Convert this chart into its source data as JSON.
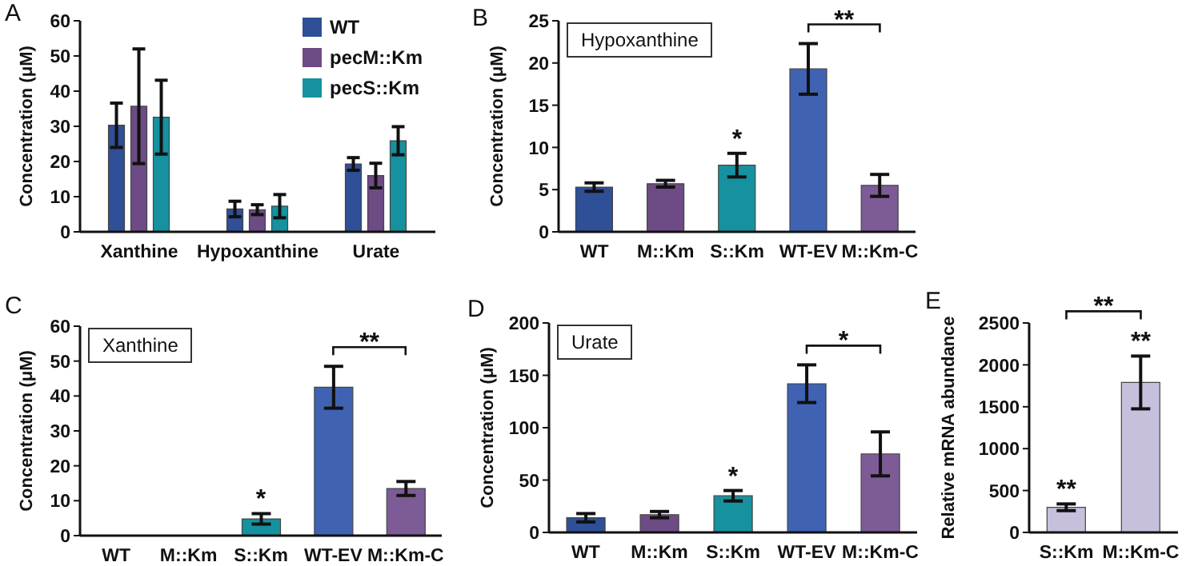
{
  "chart_data": [
    {
      "type": "bar",
      "title": "A",
      "ylabel": "Concentration (μM)",
      "categories": [
        "Xanthine",
        "Hypoxanthine",
        "Urate"
      ],
      "series": [
        {
          "name": "WT",
          "color": "#2f4f96",
          "values": [
            30.3,
            6.5,
            19.3
          ],
          "errors": [
            6.3,
            2.2,
            1.8
          ]
        },
        {
          "name": "pecM::Km",
          "color": "#6d4b85",
          "values": [
            35.7,
            6.3,
            16
          ],
          "errors": [
            16.3,
            1.4,
            3.5
          ]
        },
        {
          "name": "pecS::Km",
          "color": "#16919f",
          "values": [
            32.6,
            7.3,
            25.9
          ],
          "errors": [
            10.5,
            3.3,
            4
          ]
        }
      ],
      "ylim": [
        0,
        60
      ],
      "yticks": [
        0,
        10,
        20,
        30,
        40,
        50,
        60
      ],
      "legend": "top right"
    },
    {
      "type": "bar",
      "title": "B",
      "subtitle": "Hypoxanthine",
      "ylabel": "Concentration (μM)",
      "categories": [
        "WT",
        "M::Km",
        "S::Km",
        "WT-EV",
        "M::Km-C"
      ],
      "values": [
        5.3,
        5.7,
        7.9,
        19.3,
        5.5
      ],
      "errors": [
        0.5,
        0.4,
        1.4,
        3,
        1.3
      ],
      "colors": [
        "#2f4f96",
        "#6d4b85",
        "#16919f",
        "#3f62b2",
        "#7d5b96"
      ],
      "ylim": [
        0,
        25
      ],
      "yticks": [
        0,
        5,
        10,
        15,
        20,
        25
      ],
      "annotations": [
        {
          "text": "*",
          "x": "S::Km",
          "y": 7.9
        },
        "**"
      ]
    },
    {
      "type": "bar",
      "title": "C",
      "subtitle": "Xanthine",
      "ylabel": "Concentration (μM)",
      "categories": [
        "WT",
        "M::Km",
        "S::Km",
        "WT-EV",
        "M::Km-C"
      ],
      "values": [
        0,
        0,
        4.8,
        42.5,
        13.5
      ],
      "errors": [
        null,
        null,
        1.5,
        6,
        2
      ],
      "colors": [
        "#2f4f96",
        "#6d4b85",
        "#16919f",
        "#3f62b2",
        "#7d5b96"
      ],
      "ylim": [
        0,
        60
      ],
      "yticks": [
        0,
        10,
        20,
        30,
        40,
        50,
        60
      ],
      "annotations": [
        {
          "text": "*",
          "x": "S::Km",
          "y": 4.8
        },
        "**"
      ]
    },
    {
      "type": "bar",
      "title": "D",
      "subtitle": "Urate",
      "ylabel": "Concentration (μM)",
      "categories": [
        "WT",
        "M::Km",
        "S::Km",
        "WT-EV",
        "M::Km-C"
      ],
      "values": [
        14,
        17,
        35,
        142,
        75
      ],
      "errors": [
        4,
        3,
        5,
        18,
        21
      ],
      "colors": [
        "#2f4f96",
        "#6d4b85",
        "#16919f",
        "#3f62b2",
        "#7d5b96"
      ],
      "ylim": [
        0,
        200
      ],
      "yticks": [
        0,
        50,
        100,
        150,
        200
      ],
      "annotations": [
        {
          "text": "*",
          "x": "S::Km",
          "y": 35
        },
        "*"
      ]
    },
    {
      "type": "bar",
      "title": "E",
      "ylabel": "Relative mRNA abundance",
      "categories": [
        "S::Km",
        "M::Km-C"
      ],
      "values": [
        300,
        1790
      ],
      "errors": [
        40,
        315
      ],
      "colors": [
        "#c6c0dd",
        "#c6c0dd"
      ],
      "ylim": [
        0,
        2500
      ],
      "yticks": [
        0,
        500,
        1000,
        1500,
        2000,
        2500
      ],
      "annotations": [
        {
          "text": "**",
          "x": "S::Km",
          "y": 300
        },
        {
          "text": "**",
          "x": "M::Km-C",
          "y": 1790
        },
        "**"
      ]
    }
  ]
}
